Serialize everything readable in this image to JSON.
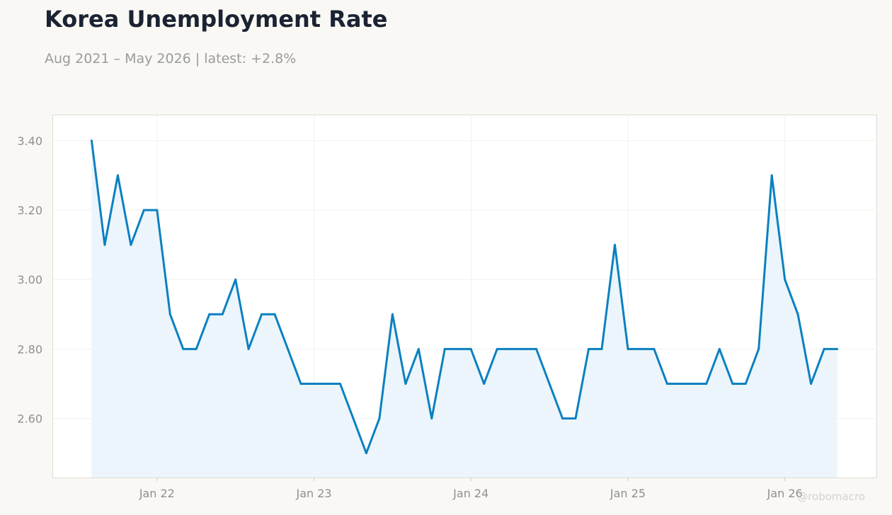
{
  "title": "Korea Unemployment Rate",
  "subtitle": "Aug 2021 – May 2026 | latest: +2.8%",
  "watermark": "@robomacro",
  "colors": {
    "line": "#0b80c1",
    "fill": "#eaf4fb",
    "background": "#f9f8f4"
  },
  "chart_data": {
    "type": "area",
    "title": "Korea Unemployment Rate",
    "xlabel": "",
    "ylabel": "",
    "x": [
      "2021-08",
      "2021-09",
      "2021-10",
      "2021-11",
      "2021-12",
      "2022-01",
      "2022-02",
      "2022-03",
      "2022-04",
      "2022-05",
      "2022-06",
      "2022-07",
      "2022-08",
      "2022-09",
      "2022-10",
      "2022-11",
      "2022-12",
      "2023-01",
      "2023-02",
      "2023-03",
      "2023-04",
      "2023-05",
      "2023-06",
      "2023-07",
      "2023-08",
      "2023-09",
      "2023-10",
      "2023-11",
      "2023-12",
      "2024-01",
      "2024-02",
      "2024-03",
      "2024-04",
      "2024-05",
      "2024-06",
      "2024-07",
      "2024-08",
      "2024-09",
      "2024-10",
      "2024-11",
      "2024-12",
      "2025-01",
      "2025-02",
      "2025-03",
      "2025-04",
      "2025-05",
      "2025-06",
      "2025-07",
      "2025-08",
      "2025-09",
      "2025-10",
      "2025-11",
      "2025-12",
      "2026-01",
      "2026-02",
      "2026-03",
      "2026-04",
      "2026-05"
    ],
    "y": [
      3.4,
      3.1,
      3.3,
      3.1,
      3.2,
      3.2,
      2.9,
      2.8,
      2.8,
      2.9,
      2.9,
      3.0,
      2.8,
      2.9,
      2.9,
      2.8,
      2.7,
      2.7,
      2.7,
      2.7,
      2.6,
      2.5,
      2.6,
      2.9,
      2.7,
      2.8,
      2.6,
      2.8,
      2.8,
      2.8,
      2.7,
      2.8,
      2.8,
      2.8,
      2.8,
      2.7,
      2.6,
      2.6,
      2.8,
      2.8,
      3.1,
      2.8,
      2.8,
      2.8,
      2.7,
      2.7,
      2.7,
      2.7,
      2.8,
      2.7,
      2.7,
      2.8,
      3.3,
      3.0,
      2.9,
      2.7,
      2.8,
      2.8
    ],
    "yticks": [
      "3.40",
      "3.20",
      "3.00",
      "2.80",
      "2.60"
    ],
    "xticks": [
      "Jan 22",
      "Jan 23",
      "Jan 24",
      "Jan 25",
      "Jan 26"
    ],
    "ylim": [
      2.43,
      3.475
    ],
    "xlim": [
      "2021-05",
      "2026-08"
    ],
    "grid": true,
    "legend": "none"
  }
}
